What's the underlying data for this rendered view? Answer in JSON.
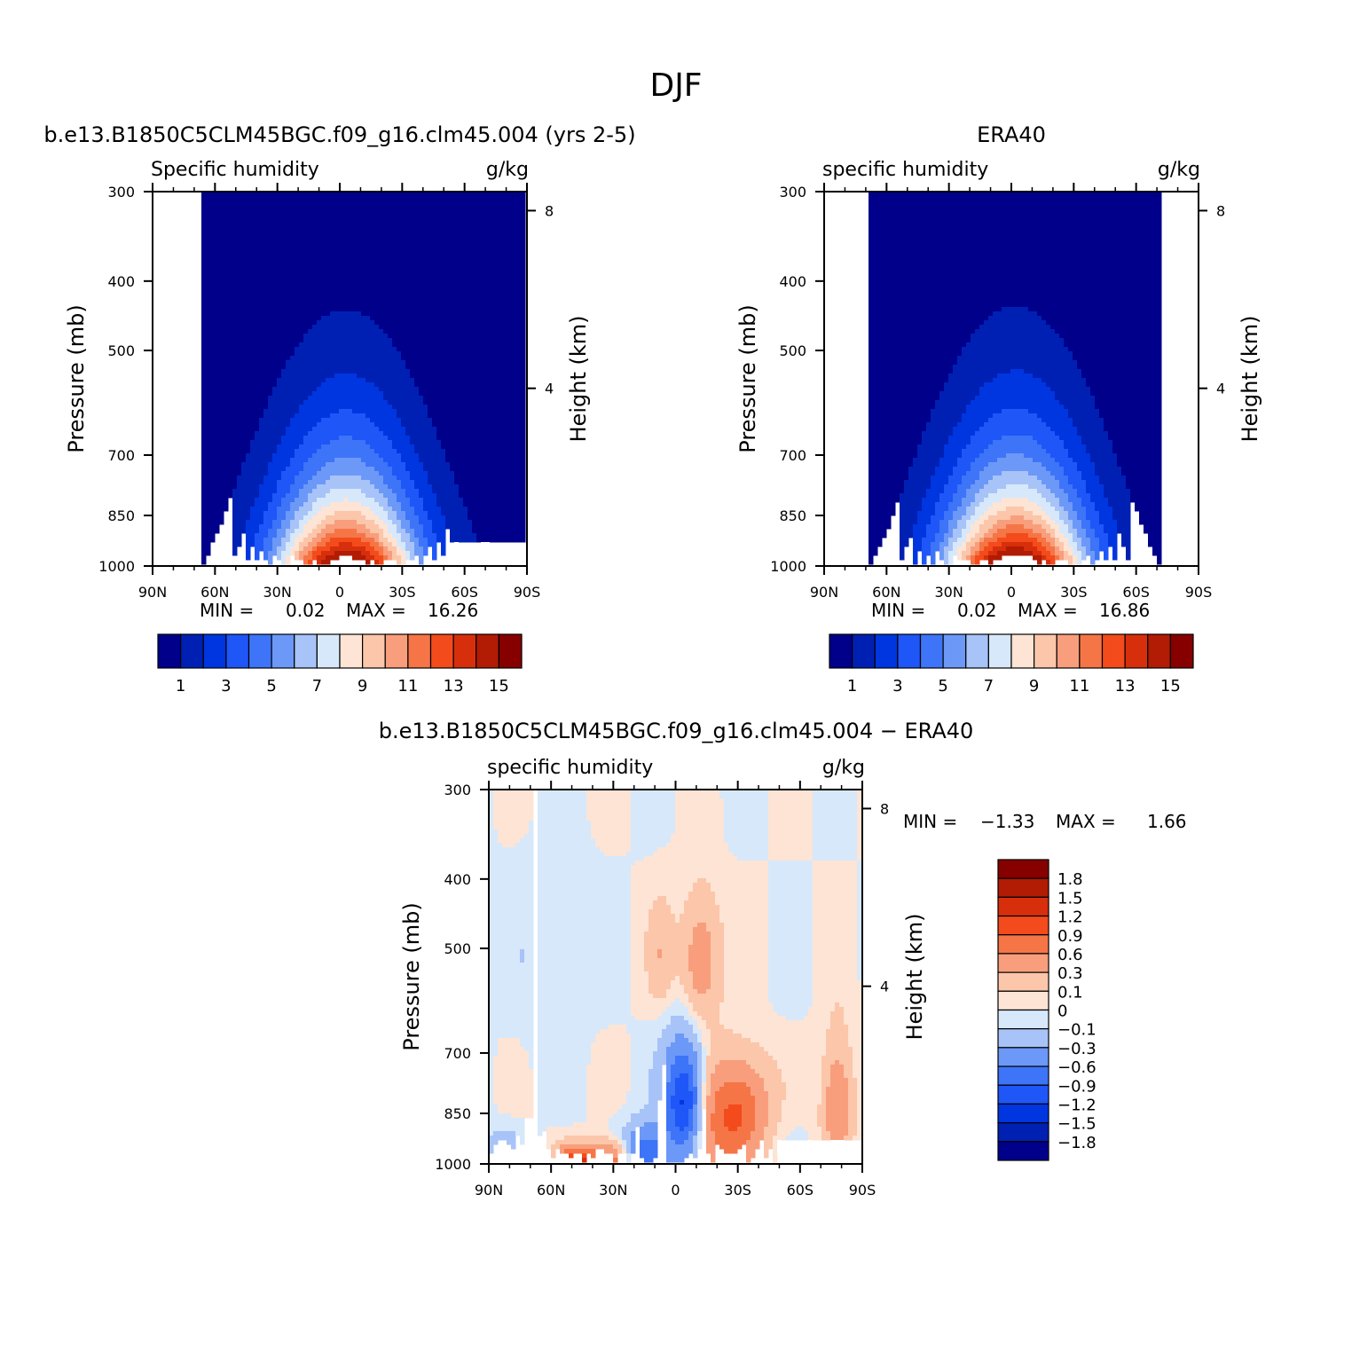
{
  "figure": {
    "title": "DJF"
  },
  "chart_data": [
    {
      "type": "heatmap",
      "title": "b.e13.B1850C5CLM45BGC.f09_g16.clm45.004 (yrs 2-5)",
      "left_string": "Specific humidity",
      "right_string": "g/kg",
      "xlabel": "",
      "ylabel": "Pressure (mb)",
      "ylabel_right": "Height (km)",
      "x_ticks": [
        "90N",
        "60N",
        "30N",
        "0",
        "30S",
        "60S",
        "90S"
      ],
      "y_ticks": [
        "300",
        "400",
        "500",
        "700",
        "850",
        "1000"
      ],
      "y_ticks_right": [
        "8",
        "4"
      ],
      "ylim": [
        1000,
        300
      ],
      "min_label": "MIN =",
      "min_value": "0.02",
      "max_label": "MAX =",
      "max_value": "16.26",
      "levels": [
        1,
        2,
        3,
        4,
        5,
        6,
        7,
        8,
        9,
        10,
        11,
        12,
        13,
        14,
        15
      ],
      "colorbar_labels": [
        "1",
        "3",
        "5",
        "7",
        "9",
        "11",
        "13",
        "15"
      ],
      "colors": [
        "#00008a",
        "#0020b4",
        "#0036e0",
        "#1e56f8",
        "#3d74f8",
        "#6c98f8",
        "#a7c3f8",
        "#d7e8fb",
        "#fde4d4",
        "#fbc6aa",
        "#f89e7c",
        "#f67546",
        "#f44b1c",
        "#d72f0c",
        "#b21b04",
        "#860000"
      ],
      "field": {
        "peak_lat": -3,
        "peak_value": 16.26,
        "surface_halfwidth_deg": 33,
        "moisture_scale_height_km": 2.0,
        "surface_min": 0.3,
        "masked_region": {
          "lat_range": [
            -55,
            -90
          ],
          "pressure_range": [
            930,
            1000
          ]
        }
      }
    },
    {
      "type": "heatmap",
      "title": "ERA40",
      "left_string": "specific humidity",
      "right_string": "g/kg",
      "xlabel": "",
      "ylabel": "Pressure (mb)",
      "ylabel_right": "Height (km)",
      "x_ticks": [
        "90N",
        "60N",
        "30N",
        "0",
        "30S",
        "60S",
        "90S"
      ],
      "y_ticks": [
        "300",
        "400",
        "500",
        "700",
        "850",
        "1000"
      ],
      "y_ticks_right": [
        "8",
        "4"
      ],
      "ylim": [
        1000,
        300
      ],
      "min_label": "MIN =",
      "min_value": "0.02",
      "max_label": "MAX =",
      "max_value": "16.86",
      "levels": [
        1,
        2,
        3,
        4,
        5,
        6,
        7,
        8,
        9,
        10,
        11,
        12,
        13,
        14,
        15
      ],
      "colorbar_labels": [
        "1",
        "3",
        "5",
        "7",
        "9",
        "11",
        "13",
        "15"
      ],
      "colors": [
        "#00008a",
        "#0020b4",
        "#0036e0",
        "#1e56f8",
        "#3d74f8",
        "#6c98f8",
        "#a7c3f8",
        "#d7e8fb",
        "#fde4d4",
        "#fbc6aa",
        "#f89e7c",
        "#f67546",
        "#f44b1c",
        "#d72f0c",
        "#b21b04",
        "#860000"
      ],
      "field": {
        "peak_lat": -2,
        "peak_value": 16.86,
        "surface_halfwidth_deg": 33,
        "moisture_scale_height_km": 2.0,
        "surface_min": 0.3
      }
    },
    {
      "type": "heatmap",
      "title": "b.e13.B1850C5CLM45BGC.f09_g16.clm45.004 − ERA40",
      "left_string": "specific humidity",
      "right_string": "g/kg",
      "xlabel": "",
      "ylabel": "Pressure (mb)",
      "ylabel_right": "Height (km)",
      "x_ticks": [
        "90N",
        "60N",
        "30N",
        "0",
        "30S",
        "60S",
        "90S"
      ],
      "y_ticks": [
        "300",
        "400",
        "500",
        "700",
        "850",
        "1000"
      ],
      "y_ticks_right": [
        "8",
        "4"
      ],
      "ylim": [
        1000,
        300
      ],
      "min_label": "MIN =",
      "min_value": "−1.33",
      "max_label": "MAX =",
      "max_value": "1.66",
      "levels": [
        -1.8,
        -1.5,
        -1.2,
        -0.9,
        -0.6,
        -0.3,
        -0.1,
        0,
        0.1,
        0.3,
        0.6,
        0.9,
        1.2,
        1.5,
        1.8
      ],
      "colorbar_labels": [
        "1.8",
        "1.5",
        "1.2",
        "0.9",
        "0.6",
        "0.3",
        "0.1",
        "0",
        "−0.1",
        "−0.3",
        "−0.6",
        "−0.9",
        "−1.2",
        "−1.5",
        "−1.8"
      ],
      "colors": [
        "#00008a",
        "#0020b4",
        "#0036e0",
        "#1e56f8",
        "#3d74f8",
        "#6c98f8",
        "#a7c3f8",
        "#d7e8fb",
        "#fde4d4",
        "#fbc6aa",
        "#f89e7c",
        "#f67546",
        "#f44b1c",
        "#d72f0c",
        "#b21b04",
        "#860000"
      ],
      "field": {
        "features": [
          {
            "lat": -4,
            "p": 820,
            "lat_width": 9,
            "p_width": 140,
            "value": -1.33
          },
          {
            "lat": 14,
            "p": 960,
            "lat_width": 10,
            "p_width": 80,
            "value": -0.8
          },
          {
            "lat": 48,
            "p": 990,
            "lat_width": 9,
            "p_width": 45,
            "value": 1.3
          },
          {
            "lat": 32,
            "p": 985,
            "lat_width": 10,
            "p_width": 50,
            "value": 0.8
          },
          {
            "lat": 84,
            "p": 985,
            "lat_width": 8,
            "p_width": 70,
            "value": -0.5
          },
          {
            "lat": -22,
            "p": 880,
            "lat_width": 14,
            "p_width": 150,
            "value": 0.7
          },
          {
            "lat": -34,
            "p": 830,
            "lat_width": 12,
            "p_width": 120,
            "value": 0.55
          },
          {
            "lat": -78,
            "p": 820,
            "lat_width": 7,
            "p_width": 160,
            "value": 0.55
          },
          {
            "lat": -12,
            "p": 520,
            "lat_width": 9,
            "p_width": 100,
            "value": 0.5
          },
          {
            "lat": 7,
            "p": 510,
            "lat_width": 6,
            "p_width": 80,
            "value": 0.25
          },
          {
            "lat": 60,
            "p": 560,
            "lat_width": 20,
            "p_width": 200,
            "value": -0.08
          }
        ],
        "masked_region": {
          "lat_range": [
            -50,
            -90
          ],
          "pressure_range": [
            925,
            1000
          ]
        }
      }
    }
  ]
}
